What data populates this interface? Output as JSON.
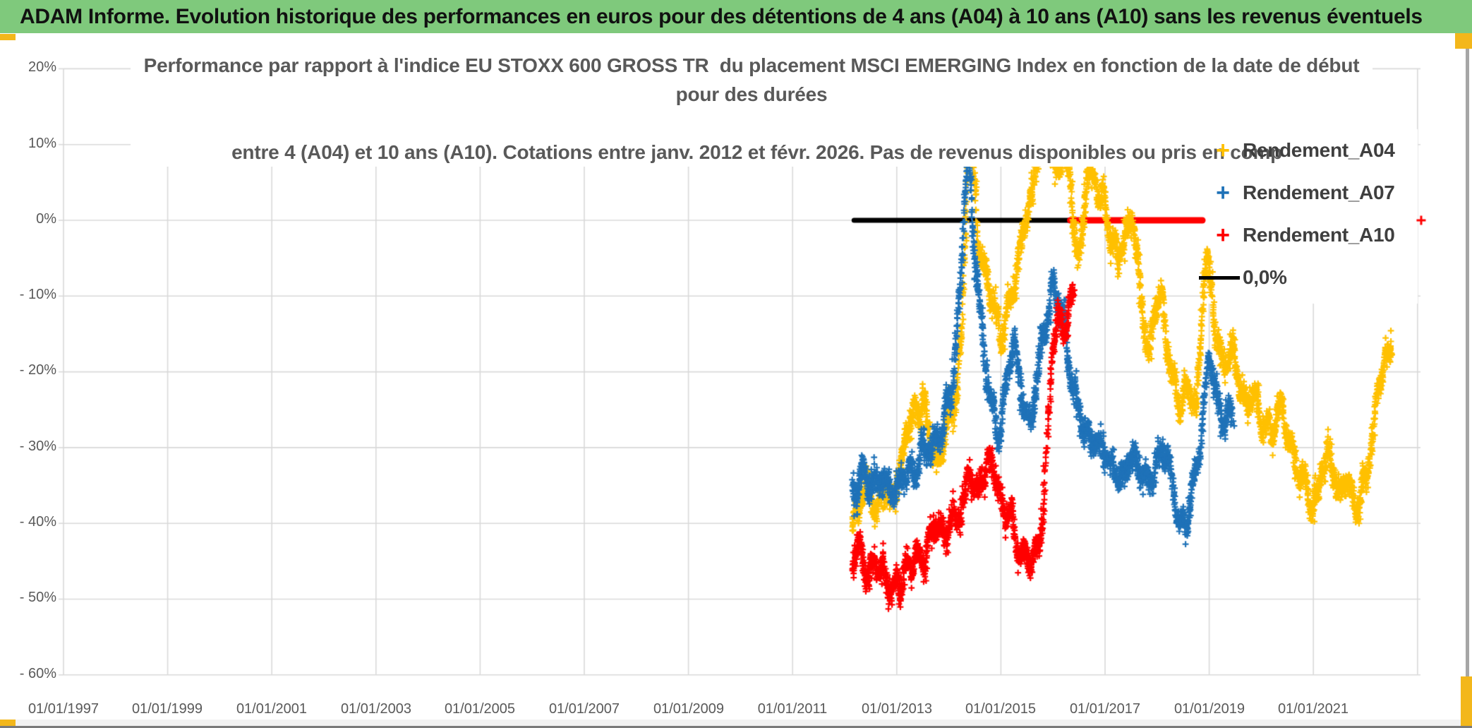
{
  "header": {
    "title": "ADAM Informe. Evolution historique des performances en euros pour des détentions de 4 ans (A04) à 10 ans (A10) sans les revenus éventuels"
  },
  "colors": {
    "header_green": "#7fc97c",
    "accent_gold": "#f3b71b",
    "gridline": "#d9d9d9",
    "axis_text": "#595959",
    "series_a04": "#FFC000",
    "series_a07": "#1F72B8",
    "series_a10": "#FF0000",
    "zero_line": "#000000"
  },
  "chart_data": {
    "type": "scatter",
    "title_line1": "Performance par rapport à l'indice EU STOXX 600 GROSS TR  du placement MSCI EMERGING Index en fonction de la date de début pour des durées",
    "title_line2": "entre 4 (A04) et 10 ans (A10). Cotations entre janv. 2012 et févr. 2026. Pas de revenus disponibles ou pris en comp",
    "x_axis": {
      "ticks": [
        "01/01/1997",
        "01/01/1999",
        "01/01/2001",
        "01/01/2003",
        "01/01/2005",
        "01/01/2007",
        "01/01/2009",
        "01/01/2011",
        "01/01/2013",
        "01/01/2015",
        "01/01/2017",
        "01/01/2019",
        "01/01/2021"
      ],
      "start_year": 1997,
      "end_year": 2023.1,
      "grid": true
    },
    "y_axis": {
      "ticks": [
        "20%",
        "10%",
        "0%",
        "- 10%",
        "- 20%",
        "- 30%",
        "- 40%",
        "- 50%",
        "- 60%"
      ],
      "min": -60,
      "max": 20,
      "step": 10,
      "unit": "percent",
      "grid": true
    },
    "legend": [
      {
        "label": "Rendement_A04",
        "marker": "+",
        "color": "#FFC000"
      },
      {
        "label": "Rendement_A07",
        "marker": "+",
        "color": "#1F72B8"
      },
      {
        "label": "Rendement_A10",
        "marker": "+",
        "color": "#FF0000"
      },
      {
        "label": "0,0%",
        "marker": "line",
        "color": "#000000"
      }
    ],
    "zero_lines": [
      {
        "color": "#000000",
        "from_year": 2012.18,
        "to_year": 2016.33,
        "value": 0,
        "thickness": 7
      },
      {
        "color": "#FF0000",
        "from_year": 2016.33,
        "to_year": 2018.87,
        "value": 0,
        "thickness": 9
      }
    ],
    "isolated_points": [
      {
        "series": "Rendement_A10",
        "color": "#FF0000",
        "year": 2023.07,
        "value": 0.0
      }
    ],
    "series": [
      {
        "name": "Rendement_A04",
        "color": "#FFC000",
        "start": 2012.15,
        "end": 2022.5,
        "waypoints": [
          [
            2012.15,
            -41
          ],
          [
            2012.3,
            -38
          ],
          [
            2012.45,
            -36.5
          ],
          [
            2012.6,
            -39
          ],
          [
            2012.75,
            -36
          ],
          [
            2012.9,
            -37.5
          ],
          [
            2013.05,
            -33.5
          ],
          [
            2013.2,
            -30
          ],
          [
            2013.35,
            -26
          ],
          [
            2013.5,
            -24
          ],
          [
            2013.65,
            -28
          ],
          [
            2013.8,
            -32
          ],
          [
            2013.95,
            -29
          ],
          [
            2014.1,
            -25
          ],
          [
            2014.25,
            -14
          ],
          [
            2014.37,
            12
          ],
          [
            2014.45,
            7
          ],
          [
            2014.55,
            -2
          ],
          [
            2014.7,
            -8
          ],
          [
            2014.85,
            -12
          ],
          [
            2015.0,
            -17
          ],
          [
            2015.15,
            -12
          ],
          [
            2015.3,
            -7
          ],
          [
            2015.45,
            -3
          ],
          [
            2015.6,
            2
          ],
          [
            2015.75,
            9
          ],
          [
            2015.9,
            12
          ],
          [
            2016.05,
            6
          ],
          [
            2016.2,
            9
          ],
          [
            2016.35,
            2
          ],
          [
            2016.5,
            -6
          ],
          [
            2016.65,
            8
          ],
          [
            2016.8,
            6
          ],
          [
            2016.95,
            3
          ],
          [
            2017.1,
            -4
          ],
          [
            2017.25,
            -7
          ],
          [
            2017.4,
            -2
          ],
          [
            2017.55,
            1
          ],
          [
            2017.7,
            -10
          ],
          [
            2017.85,
            -18
          ],
          [
            2018.0,
            -11
          ],
          [
            2018.15,
            -14
          ],
          [
            2018.3,
            -20
          ],
          [
            2018.45,
            -24
          ],
          [
            2018.6,
            -20
          ],
          [
            2018.75,
            -25
          ],
          [
            2018.95,
            -4
          ],
          [
            2019.1,
            -12
          ],
          [
            2019.25,
            -19
          ],
          [
            2019.4,
            -17
          ],
          [
            2019.55,
            -22
          ],
          [
            2019.7,
            -25
          ],
          [
            2019.85,
            -23
          ],
          [
            2020.0,
            -25
          ],
          [
            2020.2,
            -28
          ],
          [
            2020.4,
            -26
          ],
          [
            2020.6,
            -29
          ],
          [
            2020.8,
            -33
          ],
          [
            2021.0,
            -38
          ],
          [
            2021.15,
            -35
          ],
          [
            2021.3,
            -33
          ],
          [
            2021.45,
            -35.5
          ],
          [
            2021.6,
            -32
          ],
          [
            2021.75,
            -36
          ],
          [
            2021.9,
            -38.5
          ],
          [
            2022.05,
            -32
          ],
          [
            2022.2,
            -25
          ],
          [
            2022.35,
            -20
          ],
          [
            2022.5,
            -17
          ]
        ]
      },
      {
        "name": "Rendement_A07",
        "color": "#1F72B8",
        "start": 2012.15,
        "end": 2019.45,
        "waypoints": [
          [
            2012.15,
            -36
          ],
          [
            2012.35,
            -34
          ],
          [
            2012.55,
            -35.5
          ],
          [
            2012.75,
            -34
          ],
          [
            2012.95,
            -35
          ],
          [
            2013.15,
            -34
          ],
          [
            2013.35,
            -34.5
          ],
          [
            2013.55,
            -31
          ],
          [
            2013.75,
            -29
          ],
          [
            2013.9,
            -27
          ],
          [
            2014.05,
            -23
          ],
          [
            2014.2,
            -13
          ],
          [
            2014.37,
            10
          ],
          [
            2014.5,
            -4
          ],
          [
            2014.65,
            -16
          ],
          [
            2014.8,
            -23
          ],
          [
            2014.95,
            -27
          ],
          [
            2015.1,
            -24
          ],
          [
            2015.25,
            -18
          ],
          [
            2015.4,
            -24
          ],
          [
            2015.55,
            -28
          ],
          [
            2015.7,
            -22
          ],
          [
            2015.85,
            -15
          ],
          [
            2016.0,
            -7
          ],
          [
            2016.15,
            -12
          ],
          [
            2016.3,
            -16
          ],
          [
            2016.45,
            -23
          ],
          [
            2016.6,
            -27
          ],
          [
            2016.75,
            -29
          ],
          [
            2016.9,
            -31
          ],
          [
            2017.05,
            -29
          ],
          [
            2017.2,
            -33
          ],
          [
            2017.35,
            -34
          ],
          [
            2017.5,
            -31
          ],
          [
            2017.65,
            -33
          ],
          [
            2017.8,
            -35
          ],
          [
            2017.95,
            -33
          ],
          [
            2018.1,
            -31
          ],
          [
            2018.25,
            -35
          ],
          [
            2018.45,
            -42.5
          ],
          [
            2018.6,
            -38
          ],
          [
            2018.75,
            -33
          ],
          [
            2018.9,
            -24
          ],
          [
            2019.0,
            -16
          ],
          [
            2019.15,
            -23
          ],
          [
            2019.3,
            -27
          ],
          [
            2019.45,
            -26
          ]
        ]
      },
      {
        "name": "Rendement_A10",
        "color": "#FF0000",
        "start": 2012.15,
        "end": 2016.4,
        "waypoints": [
          [
            2012.15,
            -45
          ],
          [
            2012.3,
            -42.5
          ],
          [
            2012.45,
            -46
          ],
          [
            2012.6,
            -44
          ],
          [
            2012.75,
            -46
          ],
          [
            2012.9,
            -47.5
          ],
          [
            2013.05,
            -48.5
          ],
          [
            2013.2,
            -46
          ],
          [
            2013.35,
            -44.5
          ],
          [
            2013.5,
            -46.5
          ],
          [
            2013.65,
            -43
          ],
          [
            2013.8,
            -41.5
          ],
          [
            2013.95,
            -43.5
          ],
          [
            2014.1,
            -40
          ],
          [
            2014.25,
            -37
          ],
          [
            2014.4,
            -34
          ],
          [
            2014.55,
            -36
          ],
          [
            2014.7,
            -34
          ],
          [
            2014.85,
            -33.5
          ],
          [
            2015.0,
            -35.5
          ],
          [
            2015.15,
            -37.5
          ],
          [
            2015.3,
            -43
          ],
          [
            2015.45,
            -45
          ],
          [
            2015.55,
            -47
          ],
          [
            2015.7,
            -44
          ],
          [
            2015.8,
            -38
          ],
          [
            2015.9,
            -27
          ],
          [
            2016.0,
            -17
          ],
          [
            2016.1,
            -14
          ],
          [
            2016.2,
            -17
          ],
          [
            2016.3,
            -13
          ],
          [
            2016.4,
            -12
          ]
        ]
      }
    ]
  }
}
